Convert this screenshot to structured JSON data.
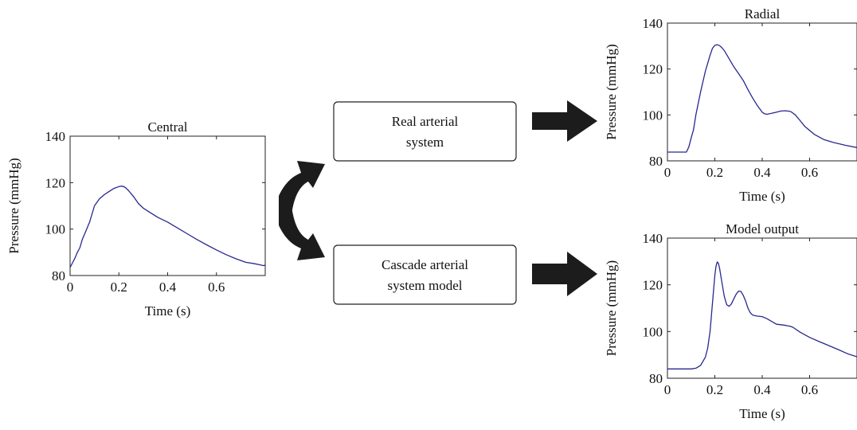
{
  "boxes": {
    "real": {
      "line1": "Real arterial",
      "line2": "system"
    },
    "cascade": {
      "line1": "Cascade arterial",
      "line2": "system model"
    }
  },
  "chart_data": [
    {
      "id": "central",
      "type": "line",
      "title": "Central",
      "xlabel": "Time (s)",
      "ylabel": "Pressure (mmHg)",
      "xlim": [
        0,
        0.8
      ],
      "ylim": [
        80,
        140
      ],
      "xticks": [
        "0",
        "0.2",
        "0.4",
        "0.6"
      ],
      "yticks": [
        "80",
        "100",
        "120",
        "140"
      ],
      "grid": false,
      "color": "#27288f",
      "series": [
        {
          "x": [
            0,
            0.01,
            0.02,
            0.03,
            0.04,
            0.05,
            0.06,
            0.08,
            0.1,
            0.12,
            0.14,
            0.16,
            0.18,
            0.2,
            0.21,
            0.22,
            0.23,
            0.24,
            0.26,
            0.28,
            0.3,
            0.33,
            0.36,
            0.4,
            0.44,
            0.48,
            0.52,
            0.56,
            0.6,
            0.64,
            0.68,
            0.72,
            0.75,
            0.78,
            0.79,
            0.8
          ],
          "y": [
            83.5,
            85.5,
            87.5,
            90,
            92,
            95.5,
            98,
            103,
            110,
            113,
            114.8,
            116.2,
            117.5,
            118.3,
            118.5,
            118.3,
            117.6,
            116.5,
            114,
            111,
            109,
            107,
            105,
            103,
            100.5,
            98,
            95.5,
            93.2,
            91,
            89,
            87.2,
            85.7,
            85.2,
            84.6,
            84.3,
            84.4
          ]
        }
      ]
    },
    {
      "id": "radial",
      "type": "line",
      "title": "Radial",
      "xlabel": "Time (s)",
      "ylabel": "Pressure (mmHg)",
      "xlim": [
        0,
        0.8
      ],
      "ylim": [
        80,
        140
      ],
      "xticks": [
        "0",
        "0.2",
        "0.4",
        "0.6"
      ],
      "yticks": [
        "80",
        "100",
        "120",
        "140"
      ],
      "grid": false,
      "color": "#27288f",
      "series": [
        {
          "x": [
            0,
            0.04,
            0.08,
            0.09,
            0.1,
            0.11,
            0.12,
            0.14,
            0.16,
            0.18,
            0.19,
            0.2,
            0.21,
            0.22,
            0.23,
            0.24,
            0.26,
            0.28,
            0.3,
            0.32,
            0.34,
            0.36,
            0.38,
            0.4,
            0.41,
            0.42,
            0.44,
            0.46,
            0.48,
            0.5,
            0.52,
            0.54,
            0.56,
            0.58,
            0.62,
            0.66,
            0.7,
            0.75,
            0.8
          ],
          "y": [
            83.8,
            83.8,
            83.8,
            86,
            90,
            93.5,
            100,
            110,
            119,
            126,
            129,
            130.3,
            130.6,
            130.2,
            129.3,
            128,
            124.5,
            121,
            118,
            115,
            111,
            107.3,
            104,
            101.2,
            100.5,
            100.3,
            100.7,
            101.2,
            101.7,
            101.8,
            101.5,
            100,
            97.5,
            95,
            91.5,
            89.3,
            88,
            86.8,
            85.8
          ]
        }
      ]
    },
    {
      "id": "model",
      "type": "line",
      "title": "Model output",
      "xlabel": "Time (s)",
      "ylabel": "Pressure (mmHg)",
      "xlim": [
        0,
        0.8
      ],
      "ylim": [
        80,
        140
      ],
      "xticks": [
        "0",
        "0.2",
        "0.4",
        "0.6"
      ],
      "yticks": [
        "80",
        "100",
        "120",
        "140"
      ],
      "grid": false,
      "color": "#27288f",
      "series": [
        {
          "x": [
            0,
            0.05,
            0.1,
            0.12,
            0.14,
            0.16,
            0.17,
            0.18,
            0.19,
            0.2,
            0.205,
            0.21,
            0.215,
            0.22,
            0.23,
            0.24,
            0.25,
            0.26,
            0.27,
            0.28,
            0.29,
            0.3,
            0.31,
            0.32,
            0.33,
            0.34,
            0.35,
            0.36,
            0.38,
            0.4,
            0.42,
            0.44,
            0.46,
            0.48,
            0.5,
            0.52,
            0.53,
            0.56,
            0.6,
            0.64,
            0.68,
            0.72,
            0.76,
            0.8
          ],
          "y": [
            84,
            84,
            84,
            84.3,
            85.5,
            89,
            93,
            100,
            112,
            124,
            128,
            129.8,
            129.2,
            127,
            121,
            115,
            111.5,
            110.8,
            111.8,
            114,
            116,
            117.3,
            117.2,
            115.5,
            113,
            110,
            108,
            107,
            106.6,
            106.4,
            105.5,
            104.3,
            103.1,
            102.9,
            102.6,
            102.2,
            101.8,
            99.7,
            97.5,
            95.7,
            94,
            92.3,
            90.5,
            89.2
          ]
        }
      ]
    }
  ]
}
